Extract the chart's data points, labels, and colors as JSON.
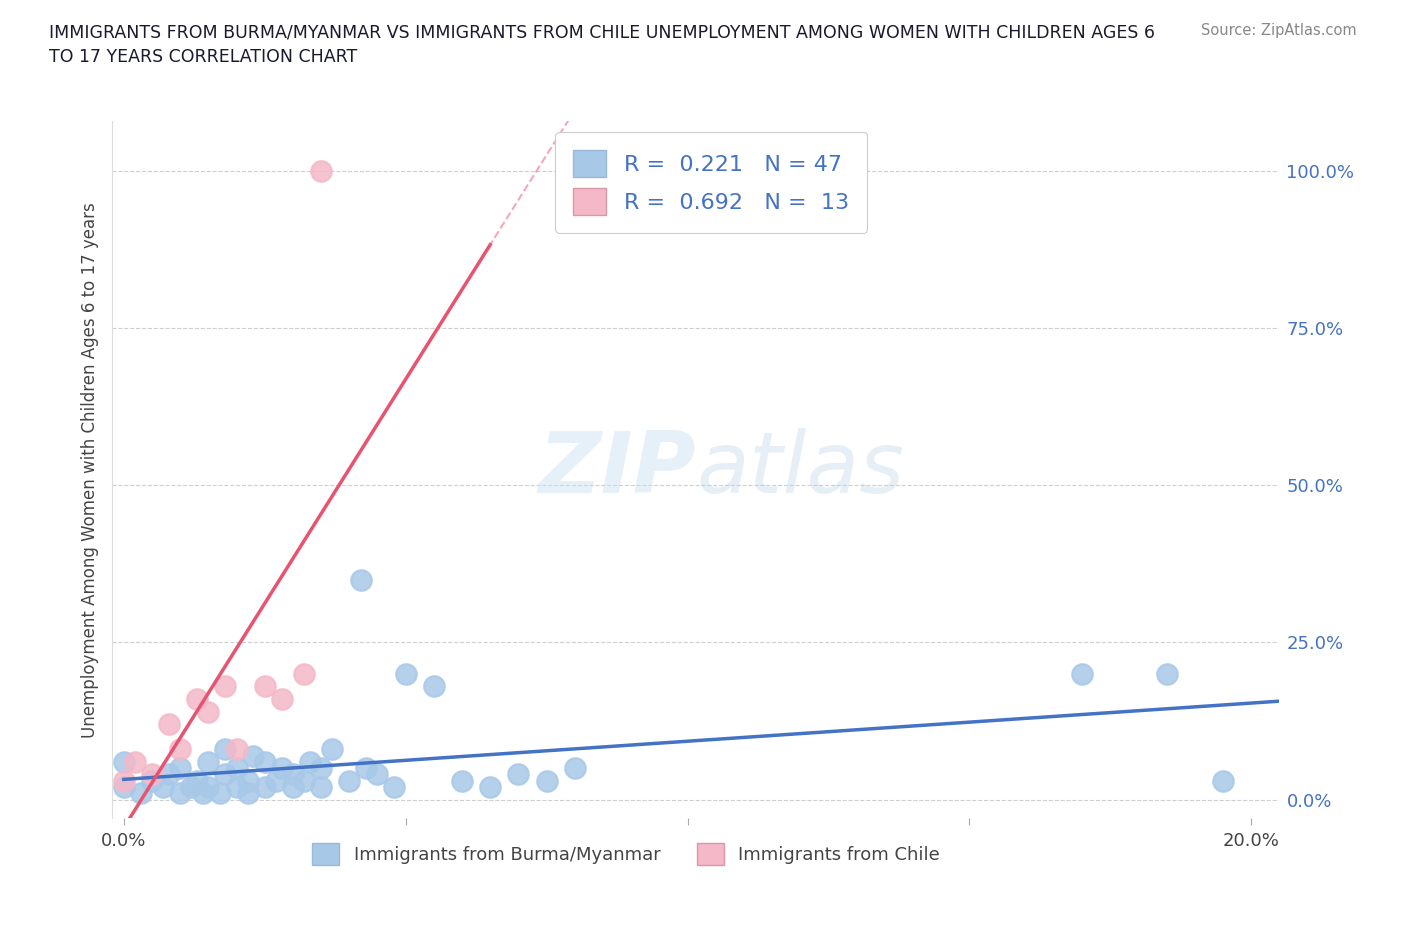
{
  "title": "IMMIGRANTS FROM BURMA/MYANMAR VS IMMIGRANTS FROM CHILE UNEMPLOYMENT AMONG WOMEN WITH CHILDREN AGES 6\nTO 17 YEARS CORRELATION CHART",
  "source": "Source: ZipAtlas.com",
  "ylabel": "Unemployment Among Women with Children Ages 6 to 17 years",
  "xlim": [
    -0.002,
    0.205
  ],
  "ylim": [
    -0.03,
    1.08
  ],
  "x_ticks": [
    0.0,
    0.05,
    0.1,
    0.15,
    0.2
  ],
  "y_ticks_right": [
    0.0,
    0.25,
    0.5,
    0.75,
    1.0
  ],
  "y_tick_labels_right": [
    "0.0%",
    "25.0%",
    "50.0%",
    "75.0%",
    "100.0%"
  ],
  "grid_color": "#bbbbbb",
  "background_color": "#ffffff",
  "series": [
    {
      "name": "Immigrants from Burma/Myanmar",
      "R": 0.221,
      "N": 47,
      "color": "#a8c8e8",
      "line_color": "#4472c4",
      "x": [
        0.0,
        0.0,
        0.003,
        0.005,
        0.007,
        0.008,
        0.01,
        0.01,
        0.012,
        0.013,
        0.014,
        0.015,
        0.015,
        0.017,
        0.018,
        0.018,
        0.02,
        0.02,
        0.022,
        0.022,
        0.023,
        0.025,
        0.025,
        0.027,
        0.028,
        0.03,
        0.03,
        0.032,
        0.033,
        0.035,
        0.035,
        0.037,
        0.04,
        0.042,
        0.043,
        0.045,
        0.048,
        0.05,
        0.055,
        0.06,
        0.065,
        0.07,
        0.075,
        0.08,
        0.17,
        0.185,
        0.195
      ],
      "y": [
        0.02,
        0.06,
        0.01,
        0.03,
        0.02,
        0.04,
        0.01,
        0.05,
        0.02,
        0.03,
        0.01,
        0.02,
        0.06,
        0.01,
        0.04,
        0.08,
        0.02,
        0.05,
        0.01,
        0.03,
        0.07,
        0.02,
        0.06,
        0.03,
        0.05,
        0.02,
        0.04,
        0.03,
        0.06,
        0.02,
        0.05,
        0.08,
        0.03,
        0.35,
        0.05,
        0.04,
        0.02,
        0.2,
        0.18,
        0.03,
        0.02,
        0.04,
        0.03,
        0.05,
        0.2,
        0.2,
        0.03
      ]
    },
    {
      "name": "Immigrants from Chile",
      "R": 0.692,
      "N": 13,
      "color": "#f4b8c8",
      "line_color": "#e85470",
      "x": [
        0.0,
        0.002,
        0.005,
        0.008,
        0.01,
        0.013,
        0.015,
        0.018,
        0.02,
        0.025,
        0.028,
        0.032,
        0.035
      ],
      "y": [
        0.03,
        0.06,
        0.04,
        0.12,
        0.08,
        0.16,
        0.14,
        0.18,
        0.08,
        0.18,
        0.16,
        0.2,
        1.0
      ]
    }
  ],
  "chile_trend_xmin": -0.002,
  "chile_trend_xmax": 0.065,
  "burma_trend_xmin": 0.0,
  "burma_trend_xmax": 0.205
}
